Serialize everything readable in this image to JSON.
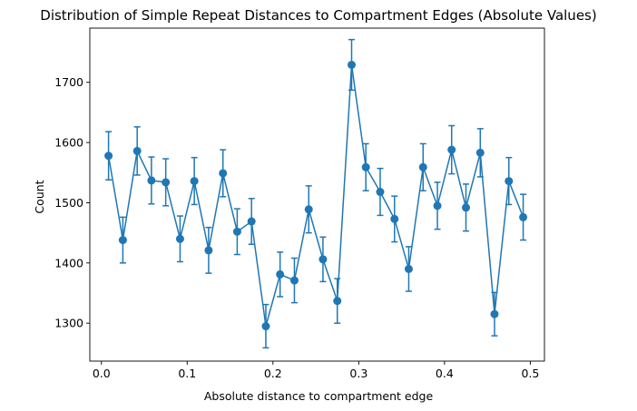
{
  "chart_data": {
    "type": "line",
    "title": "Distribution of Simple Repeat Distances to Compartment Edges (Absolute Values)",
    "xlabel": "Absolute distance to compartment edge",
    "ylabel": "Count",
    "xlim": [
      -0.0135,
      0.5165
    ],
    "ylim": [
      1237,
      1790
    ],
    "xticks": [
      0.0,
      0.1,
      0.2,
      0.3,
      0.4,
      0.5
    ],
    "xtick_labels": [
      "0.0",
      "0.1",
      "0.2",
      "0.3",
      "0.4",
      "0.5"
    ],
    "yticks": [
      1300,
      1400,
      1500,
      1600,
      1700
    ],
    "ytick_labels": [
      "1300",
      "1400",
      "1500",
      "1600",
      "1700"
    ],
    "grid": false,
    "legend": "none",
    "color": "#1f77b4",
    "series": [
      {
        "x": [
          0.0083,
          0.025,
          0.0417,
          0.0583,
          0.075,
          0.0917,
          0.1083,
          0.125,
          0.1417,
          0.1583,
          0.175,
          0.1917,
          0.2083,
          0.225,
          0.2417,
          0.2583,
          0.275,
          0.2917,
          0.3083,
          0.325,
          0.3417,
          0.3583,
          0.375,
          0.3917,
          0.4083,
          0.425,
          0.4417,
          0.4583,
          0.475,
          0.4917
        ],
        "values": [
          1578,
          1438,
          1586,
          1537,
          1534,
          1440,
          1536,
          1421,
          1549,
          1452,
          1469,
          1295,
          1381,
          1371,
          1489,
          1406,
          1337,
          1729,
          1559,
          1518,
          1473,
          1390,
          1559,
          1495,
          1588,
          1492,
          1583,
          1315,
          1536,
          1476
        ],
        "errors": [
          40,
          38,
          40,
          39,
          39,
          38,
          39,
          38,
          39,
          38,
          38,
          36,
          37,
          37,
          39,
          37,
          37,
          42,
          39,
          39,
          38,
          37,
          39,
          39,
          40,
          39,
          40,
          36,
          39,
          38
        ]
      }
    ]
  }
}
